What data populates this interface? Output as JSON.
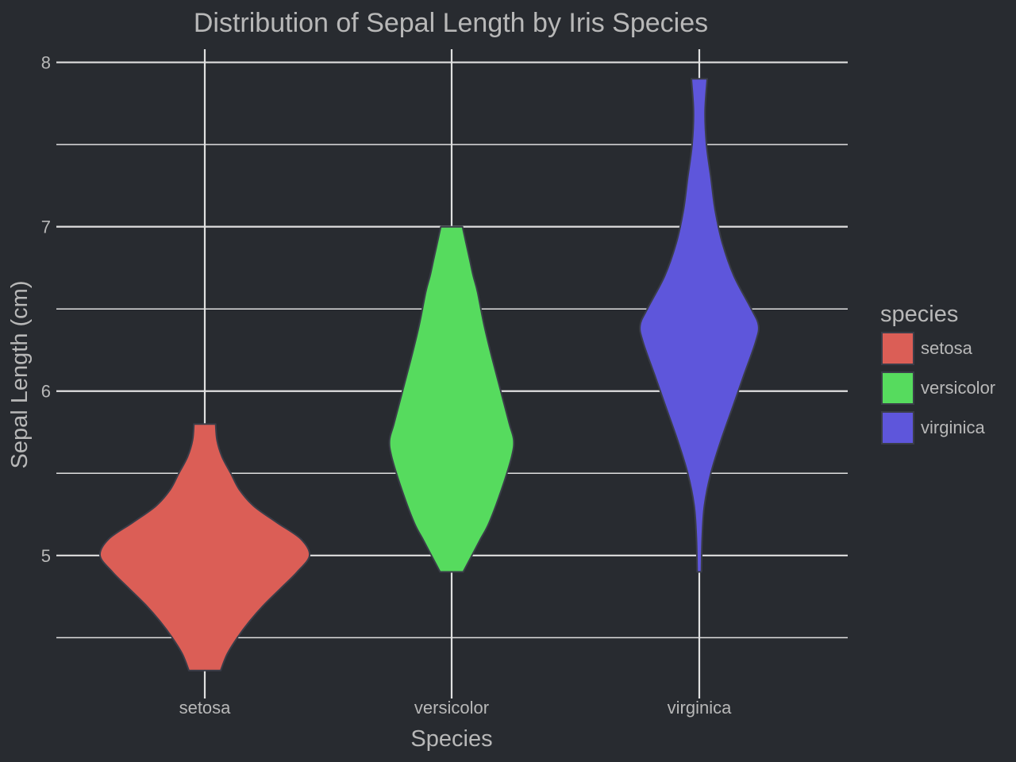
{
  "chart_data": {
    "type": "violin",
    "title": "Distribution of Sepal Length by Iris Species",
    "xlabel": "Species",
    "ylabel": "Sepal Length (cm)",
    "categories": [
      "setosa",
      "versicolor",
      "virginica"
    ],
    "ylim": [
      4.13,
      8.08
    ],
    "yticks": [
      5,
      6,
      7,
      8
    ],
    "yminor": [
      4.5,
      5.5,
      6.5,
      7.5
    ],
    "grid": true,
    "legend": {
      "title": "species",
      "placement": "right"
    },
    "series": [
      {
        "name": "setosa",
        "color": "#db5e56",
        "min": 4.3,
        "max": 5.8,
        "profile": [
          [
            4.3,
            0.22
          ],
          [
            4.4,
            0.31
          ],
          [
            4.5,
            0.45
          ],
          [
            4.6,
            0.62
          ],
          [
            4.7,
            0.82
          ],
          [
            4.8,
            1.05
          ],
          [
            4.9,
            1.28
          ],
          [
            5.0,
            1.45
          ],
          [
            5.1,
            1.33
          ],
          [
            5.2,
            1.0
          ],
          [
            5.3,
            0.68
          ],
          [
            5.4,
            0.48
          ],
          [
            5.5,
            0.36
          ],
          [
            5.6,
            0.24
          ],
          [
            5.7,
            0.17
          ],
          [
            5.8,
            0.15
          ]
        ]
      },
      {
        "name": "versicolor",
        "color": "#56db5e",
        "min": 4.9,
        "max": 7.0,
        "profile": [
          [
            4.9,
            0.16
          ],
          [
            5.0,
            0.28
          ],
          [
            5.1,
            0.4
          ],
          [
            5.2,
            0.52
          ],
          [
            5.4,
            0.69
          ],
          [
            5.6,
            0.83
          ],
          [
            5.7,
            0.86
          ],
          [
            5.8,
            0.8
          ],
          [
            6.0,
            0.68
          ],
          [
            6.2,
            0.56
          ],
          [
            6.4,
            0.45
          ],
          [
            6.6,
            0.36
          ],
          [
            6.7,
            0.3
          ],
          [
            6.8,
            0.25
          ],
          [
            6.9,
            0.2
          ],
          [
            7.0,
            0.15
          ]
        ]
      },
      {
        "name": "virginica",
        "color": "#5e56db",
        "min": 4.9,
        "max": 7.9,
        "profile": [
          [
            4.9,
            0.03
          ],
          [
            5.1,
            0.04
          ],
          [
            5.3,
            0.07
          ],
          [
            5.5,
            0.16
          ],
          [
            5.7,
            0.3
          ],
          [
            5.9,
            0.46
          ],
          [
            6.1,
            0.62
          ],
          [
            6.3,
            0.78
          ],
          [
            6.4,
            0.82
          ],
          [
            6.5,
            0.72
          ],
          [
            6.7,
            0.48
          ],
          [
            6.9,
            0.32
          ],
          [
            7.1,
            0.22
          ],
          [
            7.3,
            0.16
          ],
          [
            7.5,
            0.1
          ],
          [
            7.7,
            0.08
          ],
          [
            7.9,
            0.11
          ]
        ]
      }
    ]
  },
  "colors": {
    "background": "#282b30",
    "grid": "#e0e0e0",
    "text": "#b8b8b8",
    "outline": "#3a3d48"
  }
}
